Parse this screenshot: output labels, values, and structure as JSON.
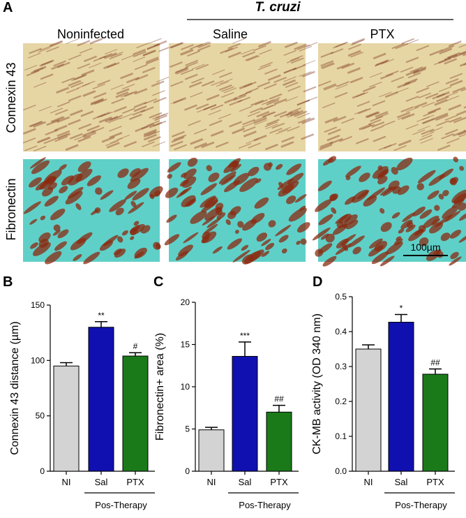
{
  "panel_a": {
    "label": "A",
    "group_title": "T. cruzi",
    "columns": [
      "Noninfected",
      "Saline",
      "PTX"
    ],
    "rows": [
      "Connexin 43",
      "Fibronectin"
    ],
    "scale_bar": "100µm"
  },
  "chart_data": [
    {
      "type": "bar",
      "panel_label": "B",
      "ylabel": "Connexin 43 distance (µm)",
      "categories": [
        "NI",
        "Sal",
        "PTX"
      ],
      "values": [
        95,
        130,
        104
      ],
      "errors": [
        3,
        5,
        3
      ],
      "colors": [
        "#d3d3d3",
        "#1010b0",
        "#1a7a1a"
      ],
      "annotations": [
        null,
        "**",
        "#"
      ],
      "group_label": "Pos-Therapy",
      "ylim": [
        0,
        150
      ],
      "yticks": [
        0,
        50,
        100,
        150
      ]
    },
    {
      "type": "bar",
      "panel_label": "C",
      "ylabel": "Fibronectin+ area (%)",
      "categories": [
        "NI",
        "Sal",
        "PTX"
      ],
      "values": [
        4.9,
        13.6,
        7.0
      ],
      "errors": [
        0.3,
        1.7,
        0.8
      ],
      "colors": [
        "#d3d3d3",
        "#1010b0",
        "#1a7a1a"
      ],
      "annotations": [
        null,
        "***",
        "##"
      ],
      "group_label": "Pos-Therapy",
      "ylim": [
        0,
        20
      ],
      "yticks": [
        0,
        5,
        10,
        15,
        20
      ]
    },
    {
      "type": "bar",
      "panel_label": "D",
      "ylabel": "CK-MB activity (OD 340 nm)",
      "categories": [
        "NI",
        "Sal",
        "PTX"
      ],
      "values": [
        0.35,
        0.427,
        0.278
      ],
      "errors": [
        0.012,
        0.022,
        0.015
      ],
      "colors": [
        "#d3d3d3",
        "#1010b0",
        "#1a7a1a"
      ],
      "annotations": [
        null,
        "*",
        "##"
      ],
      "group_label": "Pos-Therapy",
      "ylim": [
        0,
        0.5
      ],
      "yticks": [
        {
          "value": 0,
          "label": "0.0"
        },
        0.1,
        0.2,
        0.3,
        0.4,
        0.5
      ]
    }
  ]
}
